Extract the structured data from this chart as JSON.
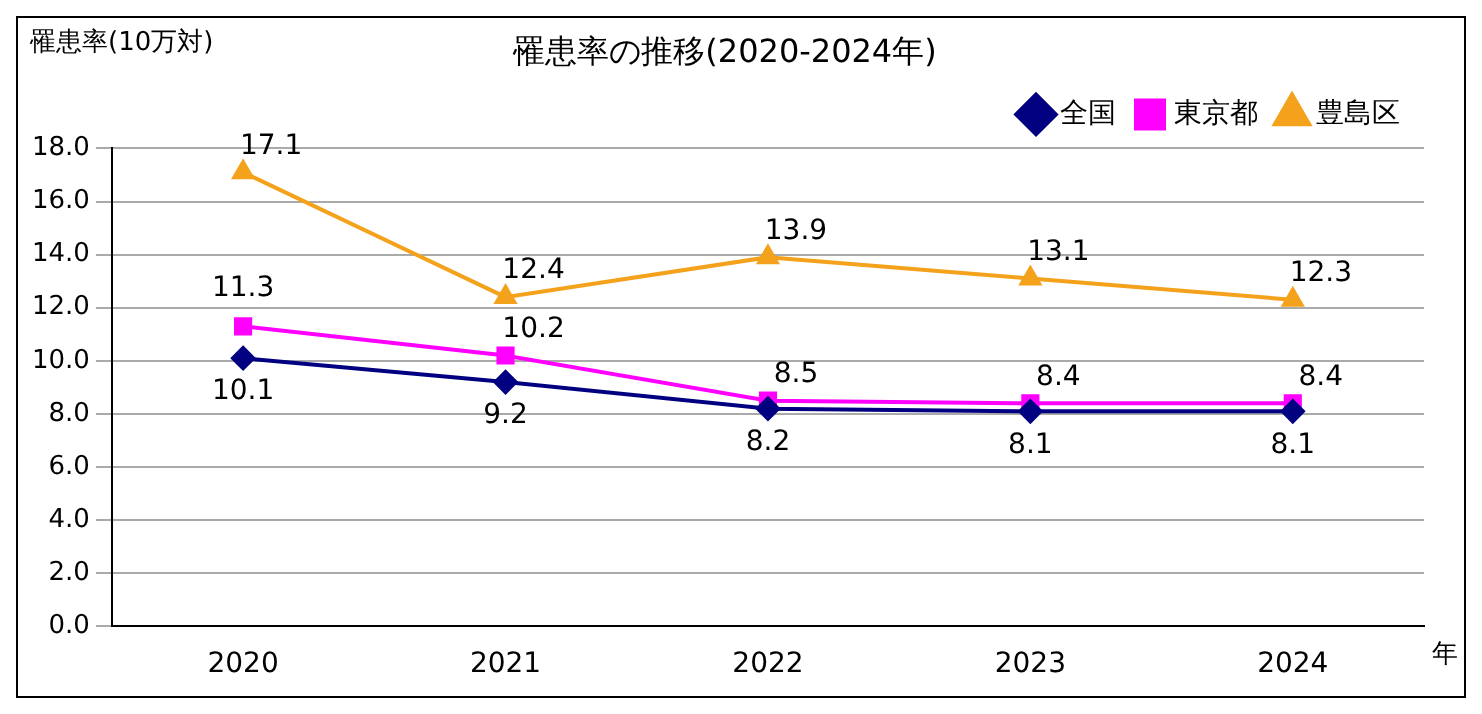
{
  "chart_data": {
    "type": "line",
    "title": "罹患率の推移(2020-2024年)",
    "ylabel": "罹患率(10万対)",
    "xlabel": "年",
    "categories": [
      "2020",
      "2021",
      "2022",
      "2023",
      "2024"
    ],
    "series": [
      {
        "name": "全国",
        "color": "#000080",
        "marker": "diamond",
        "values": [
          10.1,
          9.2,
          8.2,
          8.1,
          8.1
        ]
      },
      {
        "name": "東京都",
        "color": "#ff00ff",
        "marker": "square",
        "values": [
          11.3,
          10.2,
          8.5,
          8.4,
          8.4
        ]
      },
      {
        "name": "豊島区",
        "color": "#f4a21c",
        "marker": "triangle",
        "values": [
          17.1,
          12.4,
          13.9,
          13.1,
          12.3
        ]
      }
    ],
    "ylim": [
      0,
      18
    ],
    "yticks": [
      {
        "value": 0,
        "label": "0.0"
      },
      {
        "value": 2,
        "label": "2.0"
      },
      {
        "value": 4,
        "label": "4.0"
      },
      {
        "value": 6,
        "label": "6.0"
      },
      {
        "value": 8,
        "label": "8.0"
      },
      {
        "value": 10,
        "label": "10.0"
      },
      {
        "value": 12,
        "label": "12.0"
      },
      {
        "value": 14,
        "label": "14.0"
      },
      {
        "value": 16,
        "label": "16.0"
      },
      {
        "value": 18,
        "label": "18.0"
      }
    ],
    "grid": "y",
    "legend": "top right",
    "data_labels": true,
    "line_style": "solid"
  }
}
